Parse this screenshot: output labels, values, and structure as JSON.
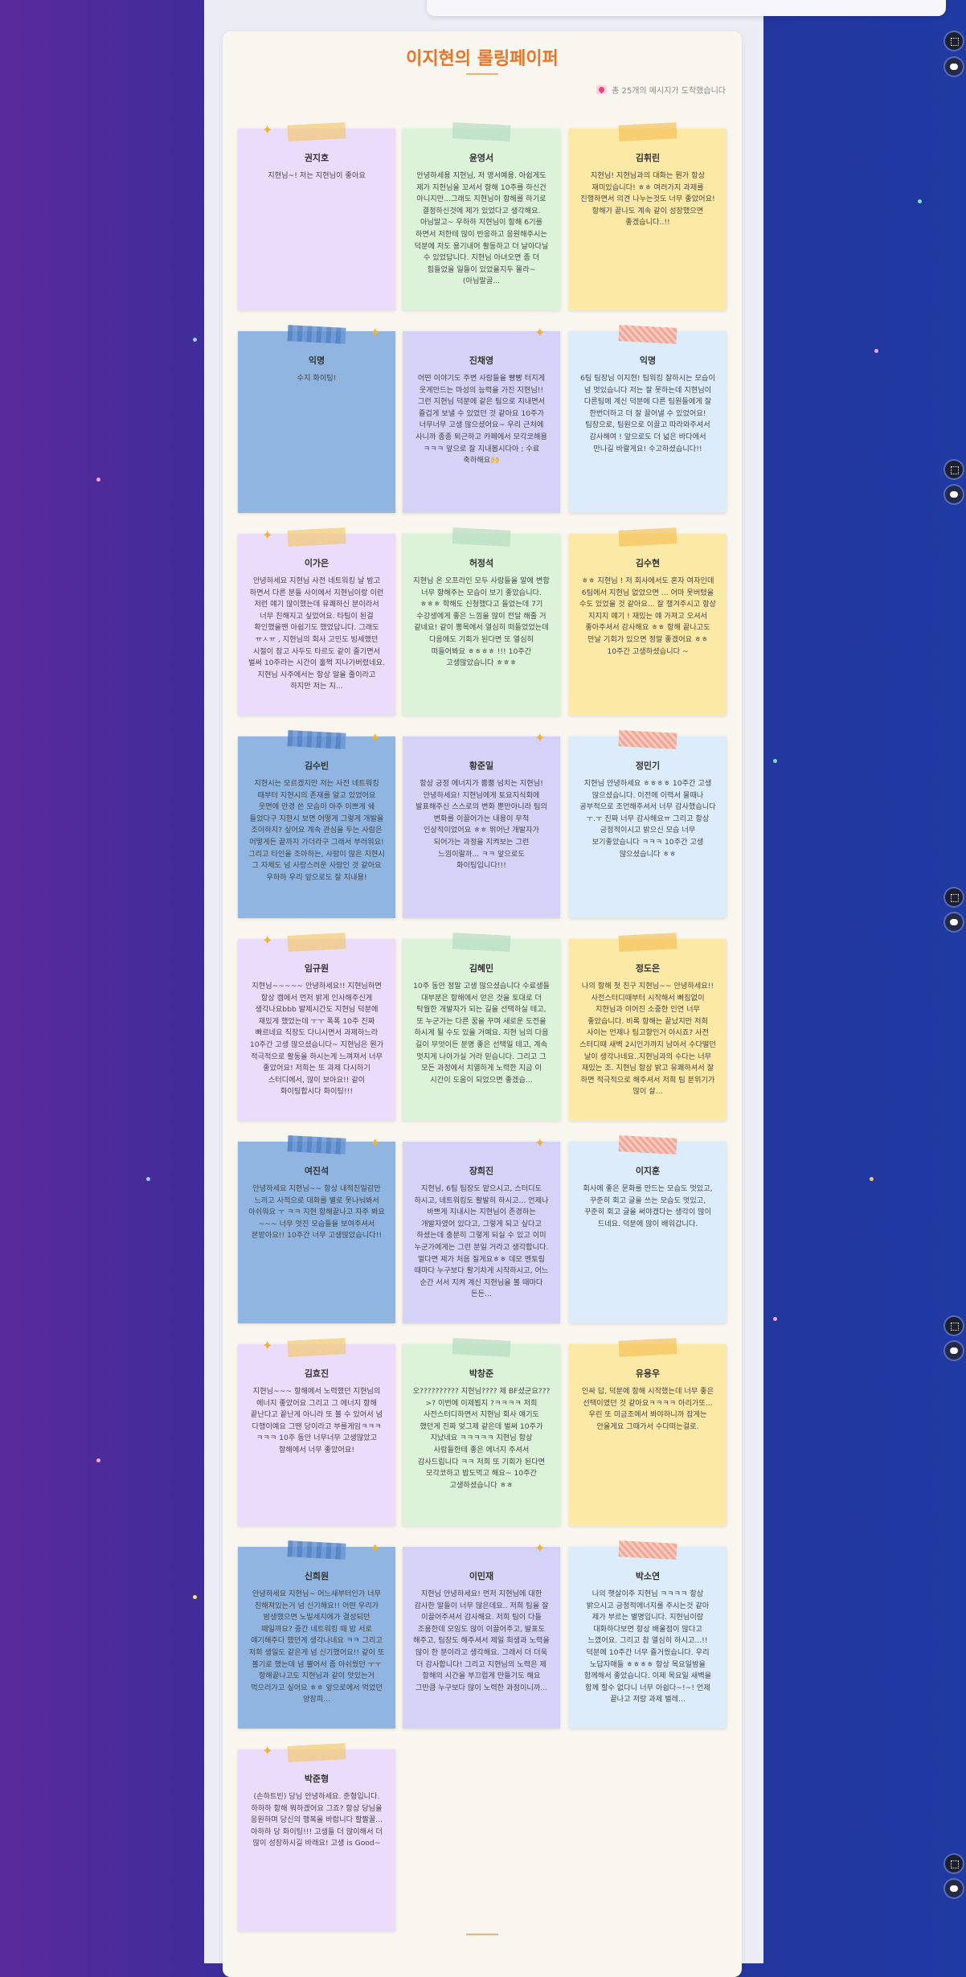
{
  "header": {
    "title": "이지현의 롤링페이퍼",
    "message_count": "총 25개의 메시지가 도착했습니다"
  },
  "messages": [
    {
      "name": "권지호",
      "text": "지현님~! 저는 지현님이 좋아요"
    },
    {
      "name": "윤영서",
      "text": "안녕하세용 지현님, 저 영서예용. 아쉽게도 제가 지현님을 꼬셔서 항해 10주를 하신건 아니지만...그래도 지현님이 항해를 하기로 결정하신것에 제가 있었다고 생각해요. 아님말고~ 우하하 지현님이 항해 6기를 하면서 저한테 많이 반응하고 응원해주시는 덕분에 저도 용기내어 활동하고 더 날아다닐 수 있었답니다. 지현님 아녀오면 좀 더 힘들었을 일들이 있었을지두 몰라~(아님말골..."
    },
    {
      "name": "김휘린",
      "text": "지현님! 지현님과의 대화는 뭔가 항상 재미있습니다! ㅎㅎ 여러가지 과제를 진행하면서 의견 나누는것도 너무 좋았어요! 항해가 끝나도 계속 같이 성장했으면 좋겠습니다..!!"
    },
    {
      "name": "익명",
      "text": "수지 화이팅!"
    },
    {
      "name": "진채영",
      "text": "어떤 이야기도 주변 사람들을 빵빵 터지게 웃게만드는 마성의 능력을 가진 지현님!! 그런 지현님 덕분에 같은 팀으로 지내면서 즐겁게 보낼 수 있었던 것 같아요 10주가 너무너무 고생 많으셨어요~ 우리 근처에 사니까 종종 퇴근하고 카페에서 모각코해용 ㅋㅋㅋ 앞으로 잘 지내봅시다아 ; 수료 축하해요🙌"
    },
    {
      "name": "익명",
      "text": "6팀 팀장님 이지현! 팀워킹 잘하시는 모습이 넘 멋있습니다 저는 잘 못하는데 지현님이 다른팀에 계신 덕분에 다른 팀원들에게 잘 한번더하고 더 잘 끌어낼 수 있었어요! 팀장으로, 팀원으로 이끌고 따라와주셔서 감사해여 ! 앞으로도 더 넓은 바다에서 만나길 바랄게요! 수고하셨습니다!!"
    },
    {
      "name": "이가은",
      "text": "안녕하세요 지현님 사전 네트워킹 날 밤고 하면서 다른 분들 사이에서 지현님이랑 이런 저런 얘기 많이했는데 유쾌하신 분이라서 너무 친해지고 싶었어요. 타팀이 된걸 확인했을땐 아쉽기도 했었답니다. 그래도 ㅠㅅㅠ , 지현님의 회사 고민도 빙세했던 시절이 참고 사두도 타르도 같이 즐기면서 벌써 10주라는 시간이 훌쩍 지나가버렸네요. 지현님 사주에서는 항상 말을 줄이라고 하지만 저는 지..."
    },
    {
      "name": "허정석",
      "text": "지현님 온 오프라인 모두 사람들을 말에 변함 너무 향해주는 모습이 보기 좋았습니다. ㅎㅎㅎ 학해도 신청했다고 들었는데 7기 수강생에게 좋은 느낌을 많이 전달 해줄 거 같네요! 같이 뽕목에서 열심히 떠들었었는데 다음에도 기회가 된다면 또 열심히 떠들어봐요 ㅎㅎㅎㅎ !!! 10주간 고생많았습니다 ㅎㅎㅎ"
    },
    {
      "name": "김수현",
      "text": "ㅎㅎ 지현님 ! 저 회사에서도 혼자 여자인데 6팀에서 지현님 없었으면 ... 어마 못버텼을 수도 있었을 것 같아요... 잘 챙겨주시고 항상 지지지 얘기 ! 재밌는 얘 가져고 오셔서 좋아주셔서 감사해요 ㅎㅎ 항해 끝나고도 만날 기회가 있으면 정말 좋겠어요 ㅎㅎ 10주간 고생하셨습니다 ~"
    },
    {
      "name": "김수빈",
      "text": "지현시는 모르겠지만 저는 사전 네트워킹 때부터 지현시의 존재를 알고 있었어요 웃면에 안경 쓴 모습이 아주 이쁘게 쉐 들었다구 지현시 보면 어떻게 그렇게 개발을 조아하지? 싶어요 계속 관심을 두는 사람은 어떻게든 끝까지 가더라구 그래서 부러워요! 그리고 타인을 조아하는, 사람이 많은 지현시 그 자체도 넘 사랑스러운 사람인 것 같아요 우하하 우리 앞으로도 잘 지내용!"
    },
    {
      "name": "황준일",
      "text": "항상 긍정 에너지가 뿜뿜 넘치는 지현님! 안녕하세요! 지현님에게 토요지식회에 발표해주신 스스로의 변화 뿐만아니라 팀의 변화를 이끌어가는 내용이 무척 인상적이었어요 ㅎㅎ 뛰어난 개발자가 되어가는 과정을 지켜보는 그런 느낌이랄까... ㅋㅋ 앞으로도 화이팅입니다!!!"
    },
    {
      "name": "정민기",
      "text": "지현님 안녕하세요 ㅎㅎㅎㅎ 10주간 고생 많으셨습니다. 이전에 이력서 물때나 공부적으로 조언해주셔서 너무 감사했습니다 ㅜ.ㅜ 진짜 너무 감사해요ㅠ 그리고 항상 긍정적이시고 밝으신 모습 너무 보기좋았습니다 ㅋㅋㅋ 10주간 고생 많으셨습니다 ㅎㅎ"
    },
    {
      "name": "임규원",
      "text": "지현님~~~~~ 안녕하세요!! 지현님하면 항상 캠에서 먼저 밝게 인사해주신게 생각나요bbb 발제시간도 지현님 덕분에 재밌게 했었는데 ㅜㅜ 폭폭 10주 진짜 빠르네요 직장도 다니시면서 과제하느라 10주간 고생 많으셨습니다~ 지현님은 뭔가 적극적으로 활동을 하시는게 느껴져서 너무 좋았어요! 저희는 또 과제 다시하기 스터디에서, 많이 보아요!! 같이 화이팅합시다 화이팅!!!"
    },
    {
      "name": "김혜민",
      "text": "10주 동안 정말 고생 많으셨습니다 수료생들 대부분은 항해에서 얻은 것을 토대로 더 탁월한 개발자가 되는 길을 선택하실 테고, 또 누군가는 다른 꿈을 꾸며 새로운 도전을 하시게 될 수도 있을 거예요. 지현 님의 다음 길이 무엇이든 분명 좋은 선택일 테고, 계속 멋지게 나아가실 거라 믿습니다. 그리고 그 모든 과정에서 치열하게 노력한 지금 이 시간이 도움이 되었으면 좋겠습..."
    },
    {
      "name": "정도은",
      "text": "나의 항해 첫 친구 지현님~~ 안녕하세요!! 사전스터디때부터 시작해서 빠짐없이 지현님과 이어진 소중한 인연 너무 좋았습니다. 비록 항해는 끝났지만 저희 사이는 언제나 팀고향인거 아시죠? 사전 스터디때 새벽 2시인가까지 남아서 수다떨던 날이 생각나네요..지현님과의 수다는 너무 재밌는 조. 지현님 항상 밝고 유쾌하셔서 잘 하면 적극적으로 해주셔서 저희 팀 분위기가 많이 살..."
    },
    {
      "name": "여진석",
      "text": "안녕하세요 지현님~~ 항상 내적친밀감만 느끼고 사적으로 대화를 별로 못나눠봐서 아쉬워요 ㅜ ㅋㅋ 지현 항해끝나고 자주 봐요~~~ 너무 멋진 모습들을 보여주셔서 본받아요!! 10주간 너무 고생많았습니다!!"
    },
    {
      "name": "장희진",
      "text": "지현님, 6팀 팀장도 맡으시고, 스터디도 하시고, 네트워킹도 활발히 하시고... 언제나 바쁘게 지내시는 지현님이 존경하는 개발자였어 있다고, 그렇게 되고 싶다고 하셨는데 충분히 그렇게 되실 수 있고 이미 누군가에게는 그런 분일 거라고 생각합니다. 멀다면 제가 처음 질게요ㅎㅎ 데모 멘토링 때마다 누구보다 활기차게 시작하시고, 어느 순간 서서 지켜 계신 지현님을 볼 때마다 든든..."
    },
    {
      "name": "이지훈",
      "text": "회사에 좋은 문화를 만드는 모습도 멋있고, 꾸준히 회고 글을 쓰는 모습도 멋있고, 꾸준히 회고 글을 써야겠다는 생각이 많이 드네요. 덕분에 많이 배워갑니다."
    },
    {
      "name": "김효진",
      "text": "지현님~~~ 항해에서 노력했던 지현님의 에너지 좋았어요 그리고 그 에너지 항해 끝난다고 끝난게 아니라 또 볼 수 있어서 넘 다행이예요 그땐 당이라고 부를게임ㅋㅋㅋ ㅋㅋㅋ 10주 동안 너무너무 고생많았고 항해에서 너무 좋았어요!"
    },
    {
      "name": "박창준",
      "text": "오?????????? 지현님???? 제 BF셨군요???>? 이번에 이제뵙지 ?ㅋㅋㅋㅋ 저희 사전스터디하면서 지현님 회사 얘기도 했던게 진짜 엊그제 같은데 벌써 10주가 지났네요 ㅋㅋㅋㅋㅋ 지현님 항상 사람들한테 좋은 에너지 주셔서 감사드립니다 ㅋㅋ 저희 또 기회가 된다면 모각코하고 밥도먹고 해요~ 10주간 고생하셨습니다 ㅎㅎ"
    },
    {
      "name": "유용우",
      "text": "인싸 답, 덕분에 항해 시작했는데 너무 좋은 선택이였던 것 같아요ㅋㅋㅋㅋ 아리가또... 우린 또 미금조에서 봐야하니까 잡게는 안올게요 그때가서 수다떠는걸로."
    },
    {
      "name": "신희원",
      "text": "안녕하세요 지현님~ 어느새부터인가 너무 친해져있는거 넘 신기해요!! 어떤 우리가 밤생했으면 노밀세지에가 결성되던 떼일까요? 중간 네트워킹 때 밥 서로 얘기해주다 했던게 생각나네요 ㅋㅋ 그리고 저희 생일도 같은게 넘 신기했어요!! 같이 또 볼기로 했는데 넘 뿔어서 좀 아쉬웠던 ㅜㅜ 항해끝나고도 지현님과 같이 맛있는거 먹으러가고 싶어요 ㅎㅎ 앞으로에서 먹었던 양장피..."
    },
    {
      "name": "이민재",
      "text": "지현님 안녕하세요! 먼저 지현님에 대한 감사한 말들이 너무 많은데요.. 저희 팀을 잘 이끌어주셔서 감사해요. 저희 팀이 다들 조용한데 모임도 많이 이끌어주고, 발표도 해주고, 팀장도 해주셔서 제일 희생과 노력을 많이 한 분이라고 생각해요. 그래서 더 더욱 더 감사합니다! 그리고 지현님의 노력은 제 항해의 시간을 부끄럽게 만들기도 해요 그만큼 누구보다 많이 노력한 과정이니까..."
    },
    {
      "name": "박소연",
      "text": "나의 햇살이주 지현님 ㅋㅋㅋㅋ 항상 밝으시고 긍정적에너지를 주시는것 같아 제가 부르는 별명입니다. 지현님이랑 대화하다보면 항상 배울점이 많다고 느꼈어요. 그리고 참 열심히 하시고...!! 덕분에 10주간 너무 즐거웠습니다. 우리 노답자매들 ㅎㅎㅎㅎ 항상 목요일밤을 함께해서 좋았습니다. 이제 목요일 새벽을 함께 할수 없다니 너무 아쉽다~!~! 언제 끝나고 저랑 과제 벌레..."
    },
    {
      "name": "박준형",
      "text": "(손하트빈) 당님 안녕하세요. 준형입니다. 하하하 항해 뭐하겠어요 그죠? 항상 당님을 응원하며 당신의 행복을 바랍니다 할짤꿀... 아하하 당 화이팅!!! 고생들 더 많이해서 더 많이 성장하시길 바래요! 고생 is Good~"
    }
  ]
}
